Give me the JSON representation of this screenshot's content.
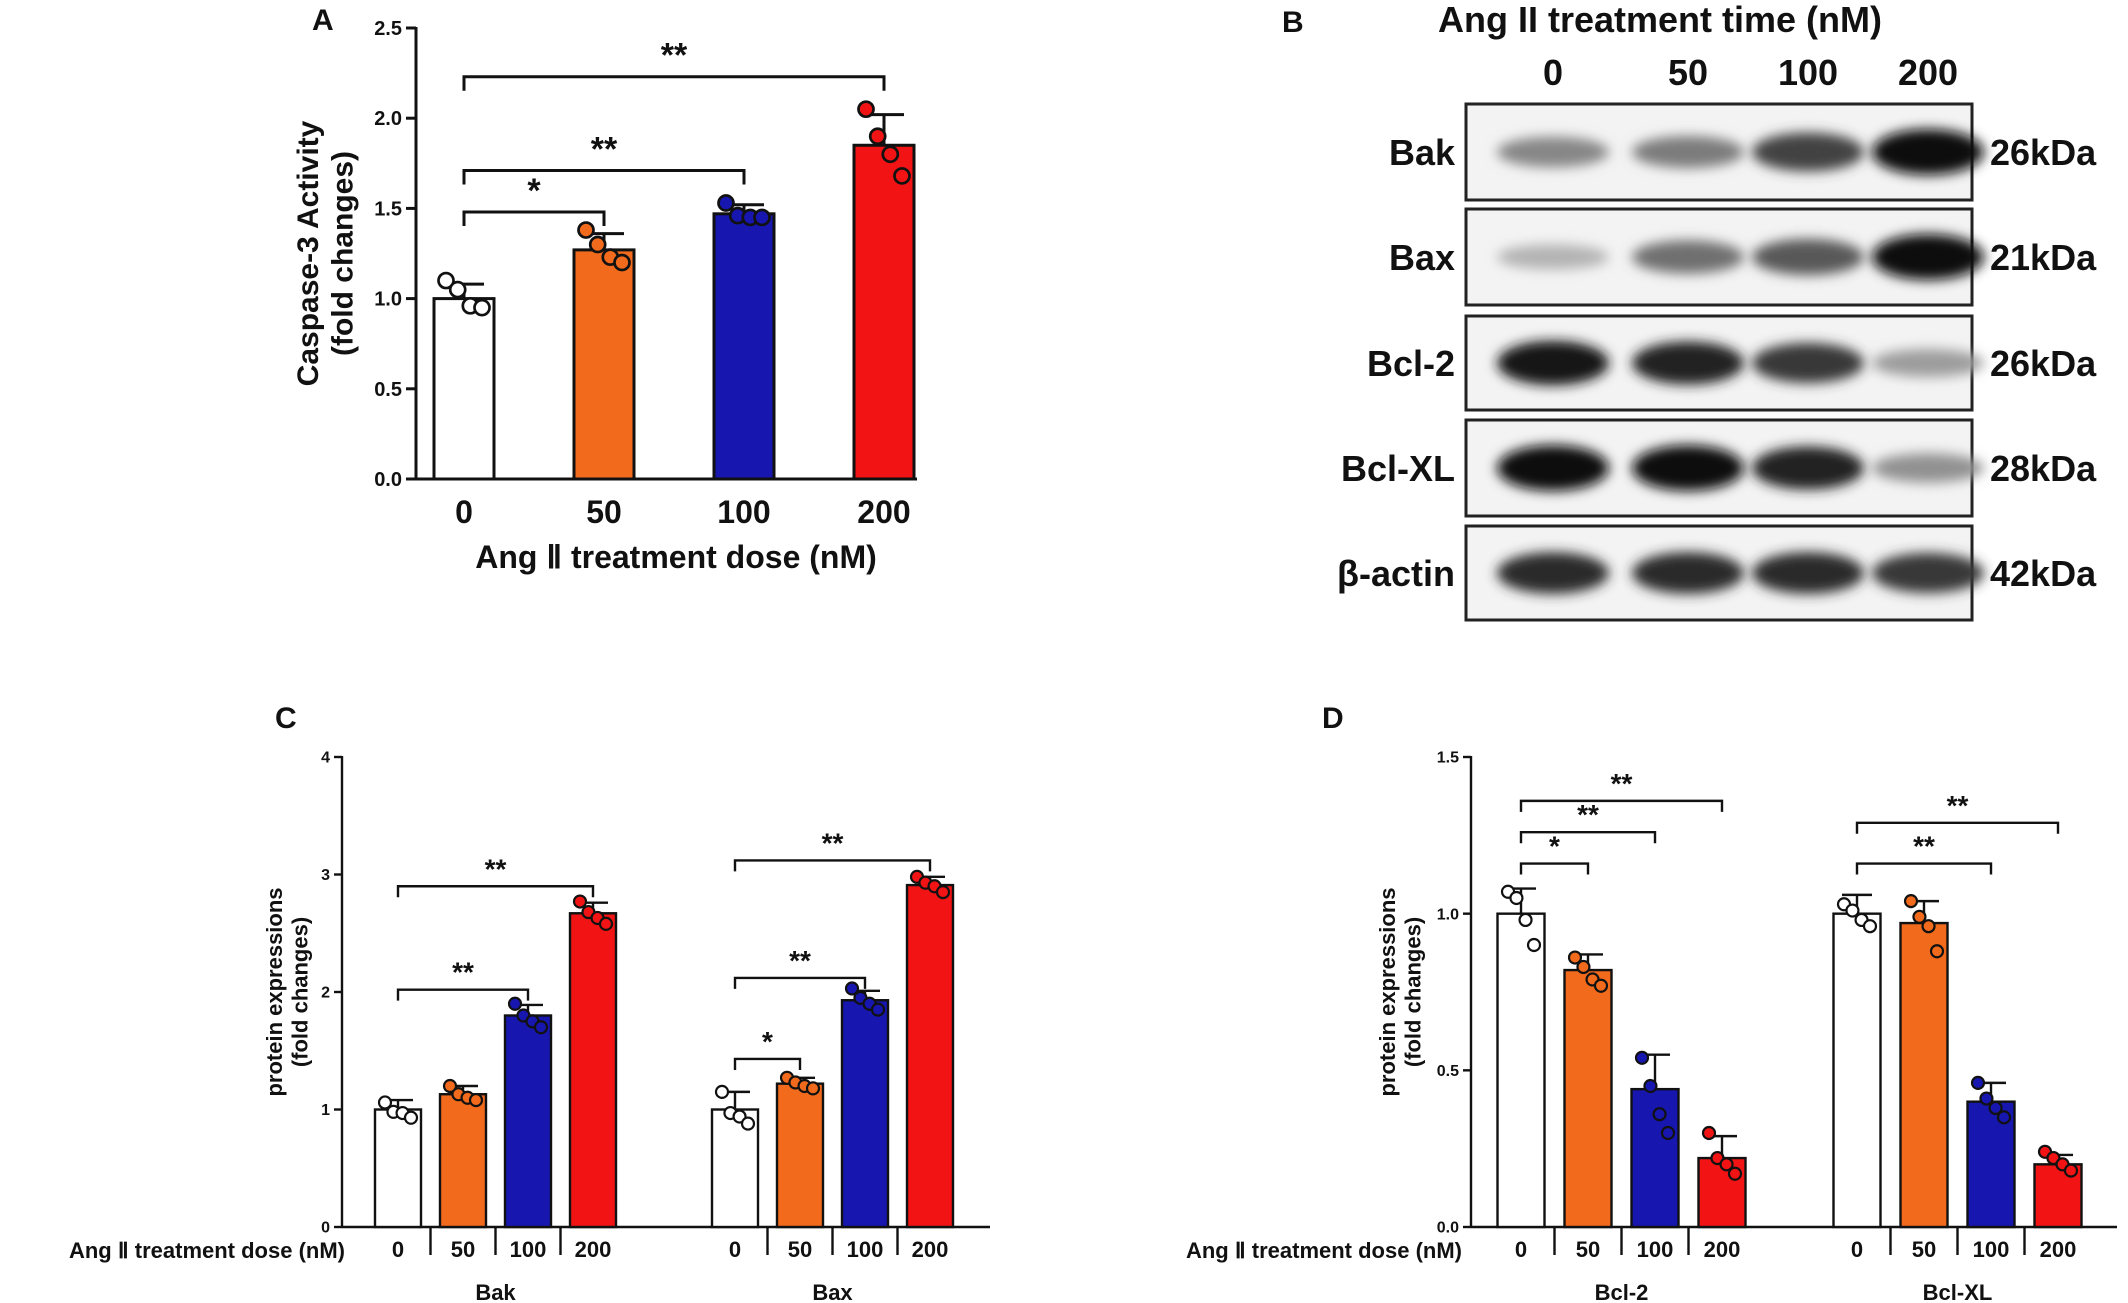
{
  "panels": {
    "A": "A",
    "B": "B",
    "C": "C",
    "D": "D"
  },
  "colors": {
    "dose_0": "#ffffff",
    "dose_50": "#f26b1d",
    "dose_100": "#1717b0",
    "dose_200": "#f21414"
  },
  "blot": {
    "title": "Ang II treatment time (nM)",
    "lane_labels": [
      "0",
      "50",
      "100",
      "200"
    ],
    "rows": [
      {
        "protein": "Bak",
        "size": "26kDa",
        "intensities": [
          0.45,
          0.5,
          0.75,
          1.0
        ]
      },
      {
        "protein": "Bax",
        "size": "21kDa",
        "intensities": [
          0.25,
          0.55,
          0.65,
          1.0
        ]
      },
      {
        "protein": "Bcl-2",
        "size": "26kDa",
        "intensities": [
          0.95,
          0.9,
          0.8,
          0.35
        ]
      },
      {
        "protein": "Bcl-XL",
        "size": "28kDa",
        "intensities": [
          1.0,
          1.0,
          0.9,
          0.4
        ]
      },
      {
        "protein": "β-actin",
        "size": "42kDa",
        "intensities": [
          0.85,
          0.85,
          0.85,
          0.8
        ]
      }
    ]
  },
  "chart_data": [
    {
      "id": "A",
      "type": "bar",
      "categories": [
        "0",
        "50",
        "100",
        "200"
      ],
      "values": [
        1.0,
        1.27,
        1.47,
        1.85
      ],
      "errors": [
        0.08,
        0.09,
        0.05,
        0.17
      ],
      "points": [
        [
          1.1,
          1.05,
          0.96,
          0.95
        ],
        [
          1.38,
          1.3,
          1.23,
          1.2
        ],
        [
          1.53,
          1.46,
          1.45,
          1.45
        ],
        [
          2.05,
          1.9,
          1.8,
          1.68
        ]
      ],
      "ylabel_line1": "Caspase-3 Activity",
      "ylabel_line2": "(fold changes)",
      "xlabel": "Ang Ⅱ  treatment dose (nM)",
      "ylim": [
        0,
        2.5
      ],
      "yticks": [
        "0.0",
        "0.5",
        "1.0",
        "1.5",
        "2.0",
        "2.5"
      ],
      "comparisons": [
        {
          "from": 0,
          "to": 1,
          "label": "*"
        },
        {
          "from": 0,
          "to": 2,
          "label": "**"
        },
        {
          "from": 0,
          "to": 3,
          "label": "**"
        }
      ]
    },
    {
      "id": "C",
      "type": "bar",
      "groups": [
        "Bak",
        "Bax"
      ],
      "categories": [
        "0",
        "50",
        "100",
        "200"
      ],
      "series": [
        {
          "group": "Bak",
          "values": [
            1.0,
            1.13,
            1.8,
            2.67
          ],
          "errors": [
            0.08,
            0.07,
            0.09,
            0.09
          ],
          "points": [
            [
              1.06,
              0.98,
              0.97,
              0.93
            ],
            [
              1.2,
              1.13,
              1.1,
              1.08
            ],
            [
              1.9,
              1.8,
              1.75,
              1.7
            ],
            [
              2.77,
              2.68,
              2.63,
              2.58
            ]
          ]
        },
        {
          "group": "Bax",
          "values": [
            1.0,
            1.22,
            1.93,
            2.91
          ],
          "errors": [
            0.15,
            0.05,
            0.08,
            0.07
          ],
          "points": [
            [
              1.15,
              0.97,
              0.94,
              0.88
            ],
            [
              1.27,
              1.23,
              1.2,
              1.18
            ],
            [
              2.03,
              1.95,
              1.9,
              1.85
            ],
            [
              2.98,
              2.93,
              2.9,
              2.85
            ]
          ]
        }
      ],
      "ylabel_line1": "protein expressions",
      "ylabel_line2": "(fold changes)",
      "xlabel": "Ang Ⅱ  treatment dose (nM)",
      "ylim": [
        0,
        4
      ],
      "yticks": [
        "0",
        "1",
        "2",
        "3",
        "4"
      ],
      "comparisons": [
        {
          "group": 0,
          "from": 0,
          "to": 2,
          "label": "**"
        },
        {
          "group": 0,
          "from": 0,
          "to": 3,
          "label": "**"
        },
        {
          "group": 1,
          "from": 0,
          "to": 1,
          "label": "*"
        },
        {
          "group": 1,
          "from": 0,
          "to": 2,
          "label": "**"
        },
        {
          "group": 1,
          "from": 0,
          "to": 3,
          "label": "**"
        }
      ]
    },
    {
      "id": "D",
      "type": "bar",
      "groups": [
        "Bcl-2",
        "Bcl-XL"
      ],
      "categories": [
        "0",
        "50",
        "100",
        "200"
      ],
      "series": [
        {
          "group": "Bcl-2",
          "values": [
            1.0,
            0.82,
            0.44,
            0.22
          ],
          "errors": [
            0.08,
            0.05,
            0.11,
            0.07
          ],
          "points": [
            [
              1.07,
              1.05,
              0.98,
              0.9
            ],
            [
              0.86,
              0.83,
              0.79,
              0.77
            ],
            [
              0.54,
              0.45,
              0.36,
              0.3
            ],
            [
              0.3,
              0.22,
              0.2,
              0.17
            ]
          ]
        },
        {
          "group": "Bcl-XL",
          "values": [
            1.0,
            0.97,
            0.4,
            0.2
          ],
          "errors": [
            0.06,
            0.07,
            0.06,
            0.03
          ],
          "points": [
            [
              1.03,
              1.01,
              0.98,
              0.96
            ],
            [
              1.04,
              0.99,
              0.96,
              0.88
            ],
            [
              0.46,
              0.41,
              0.38,
              0.35
            ],
            [
              0.24,
              0.22,
              0.2,
              0.18
            ]
          ]
        }
      ],
      "ylabel_line1": "protein expressions",
      "ylabel_line2": "(fold changes)",
      "xlabel": "Ang Ⅱ  treatment dose (nM)",
      "ylim": [
        0,
        1.5
      ],
      "yticks": [
        "0.0",
        "0.5",
        "1.0",
        "1.5"
      ],
      "comparisons": [
        {
          "group": 0,
          "from": 0,
          "to": 1,
          "label": "*"
        },
        {
          "group": 0,
          "from": 0,
          "to": 2,
          "label": "**"
        },
        {
          "group": 0,
          "from": 0,
          "to": 3,
          "label": "**"
        },
        {
          "group": 1,
          "from": 0,
          "to": 2,
          "label": "**"
        },
        {
          "group": 1,
          "from": 0,
          "to": 3,
          "label": "**"
        }
      ]
    }
  ]
}
